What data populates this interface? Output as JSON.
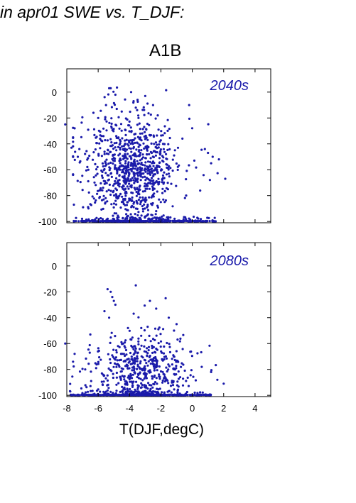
{
  "header": {
    "title": "in apr01 SWE vs. T_DJF:",
    "scenario": "A1B"
  },
  "colors": {
    "points": "#1a1aaa",
    "panel_label": "#1a1aaa",
    "axes": "#000000"
  },
  "chart_data": [
    {
      "type": "scatter",
      "panel_label": "2040s",
      "xlabel": "T(DJF,degC)",
      "ylabel": "",
      "xlim": [
        -8,
        5
      ],
      "ylim": [
        -101,
        18
      ],
      "xticks": [
        -8,
        -6,
        -4,
        -2,
        0,
        2,
        4
      ],
      "yticks": [
        0,
        -20,
        -40,
        -60,
        -80,
        -100
      ],
      "grid": false,
      "distribution": {
        "x_center": -3.8,
        "x_spread": 1.55,
        "y_center": -60,
        "y_spread": 22,
        "floor_value": -100,
        "floor_x_range": [
          -7.6,
          1.5
        ],
        "n_points": 900,
        "n_floor_points": 420
      },
      "points": [
        [
          -8.1,
          -25
        ],
        [
          -7.7,
          -43
        ],
        [
          -7.5,
          -28
        ],
        [
          -7.3,
          -50
        ],
        [
          -7.2,
          -44
        ],
        [
          -7.6,
          -64
        ],
        [
          -5.3,
          3
        ],
        [
          -5.2,
          3
        ],
        [
          -4.9,
          -2
        ],
        [
          -3.9,
          0
        ],
        [
          -3.0,
          -3
        ],
        [
          -2.5,
          -10
        ],
        [
          -0.2,
          -10
        ],
        [
          0.8,
          -44
        ],
        [
          1.0,
          -47
        ],
        [
          1.3,
          -50
        ],
        [
          1.7,
          -52
        ],
        [
          2.1,
          -67
        ],
        [
          1.2,
          -55
        ],
        [
          -6.3,
          -16
        ],
        [
          -6.0,
          -20
        ],
        [
          -5.5,
          -10
        ],
        [
          -4.5,
          -15
        ],
        [
          -3.6,
          -12
        ],
        [
          -2.2,
          -18
        ]
      ]
    },
    {
      "type": "scatter",
      "panel_label": "2080s",
      "xlabel": "T(DJF,degC)",
      "ylabel": "",
      "xlim": [
        -8,
        5
      ],
      "ylim": [
        -101,
        18
      ],
      "xticks": [
        -8,
        -6,
        -4,
        -2,
        0,
        2,
        4
      ],
      "yticks": [
        0,
        -20,
        -40,
        -60,
        -80,
        -100
      ],
      "grid": false,
      "distribution": {
        "x_center": -3.3,
        "x_spread": 1.6,
        "y_center": -80,
        "y_spread": 14,
        "floor_value": -100,
        "floor_x_range": [
          -7.8,
          1.2
        ],
        "n_points": 520,
        "n_floor_points": 480
      },
      "points": [
        [
          -8.1,
          -60
        ],
        [
          -7.5,
          -68
        ],
        [
          -7.6,
          -74
        ],
        [
          -6.5,
          -53
        ],
        [
          -5.4,
          -18
        ],
        [
          -5.2,
          -20
        ],
        [
          -5.1,
          -24
        ],
        [
          -5.0,
          -27
        ],
        [
          -4.9,
          -30
        ],
        [
          -3.6,
          -15
        ],
        [
          -2.7,
          -27
        ],
        [
          -2.3,
          -33
        ],
        [
          -1.7,
          -25
        ],
        [
          -1.5,
          -40
        ],
        [
          -1.0,
          -45
        ],
        [
          0.6,
          -78
        ],
        [
          1.2,
          -82
        ],
        [
          1.6,
          -88
        ],
        [
          2.0,
          -91
        ],
        [
          -5.6,
          -35
        ],
        [
          -5.3,
          -40
        ],
        [
          -4.1,
          -48
        ]
      ]
    }
  ]
}
